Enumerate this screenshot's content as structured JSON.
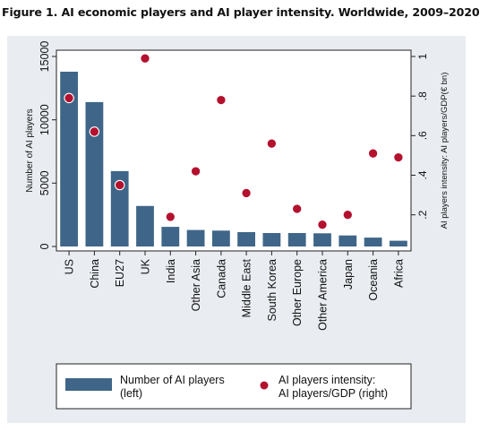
{
  "figure": {
    "title": "Figure 1. AI economic players and AI player intensity. Worldwide, 2009–2020"
  },
  "chart_data": {
    "type": "bar",
    "categories": [
      "US",
      "China",
      "EU27",
      "UK",
      "India",
      "Other Asia",
      "Canada",
      "Middle East",
      "South Korea",
      "Other Europe",
      "Other America",
      "Japan",
      "Oceania",
      "Africa"
    ],
    "series": [
      {
        "name": "Number of AI players (left)",
        "type": "bar",
        "axis": "left",
        "color": "#3f6688",
        "values": [
          13800,
          11400,
          5950,
          3200,
          1550,
          1300,
          1250,
          1130,
          1060,
          1060,
          1040,
          870,
          700,
          450
        ]
      },
      {
        "name": "AI players intensity: AI players/GDP (right)",
        "type": "scatter",
        "axis": "right",
        "color": "#b3112e",
        "values": [
          0.79,
          0.62,
          0.35,
          0.99,
          0.19,
          0.42,
          0.78,
          0.31,
          0.56,
          0.23,
          0.15,
          0.2,
          0.51,
          0.49
        ]
      }
    ],
    "ylabel": "Number of AI players",
    "y2label": "AI players intensity: AI players/GDP(€ bn)",
    "ylim": [
      0,
      15000
    ],
    "y2lim": [
      0.04,
      1.0
    ],
    "yticks": [
      "0",
      "5000",
      "10000",
      "15000"
    ],
    "y2ticks": [
      ".2",
      ".4",
      ".6",
      ".8",
      "1"
    ],
    "legend": {
      "position": "bottom",
      "bar_label_line1": "Number of AI players",
      "bar_label_line2": "(left)",
      "dot_label_line1": "AI players intensity:",
      "dot_label_line2": "AI players/GDP (right)"
    },
    "grid": false
  }
}
